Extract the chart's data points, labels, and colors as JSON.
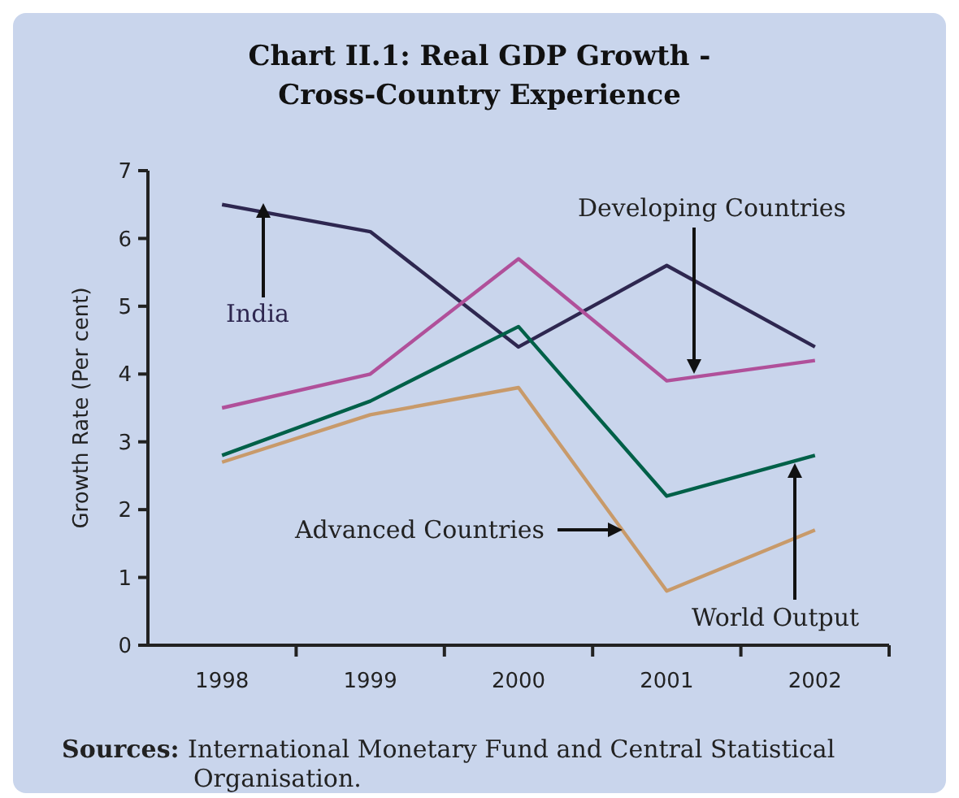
{
  "chart_data": {
    "type": "line",
    "title": "Chart II.1: Real GDP Growth -\nCross-Country Experience",
    "ylabel": "Growth Rate (Per cent)",
    "categories": [
      "1998",
      "1999",
      "2000",
      "2001",
      "2002"
    ],
    "series": [
      {
        "name": "India",
        "color": "#2e2750",
        "values": [
          6.5,
          6.1,
          4.4,
          5.6,
          4.4
        ]
      },
      {
        "name": "Developing Countries",
        "color": "#b0509a",
        "values": [
          3.5,
          4.0,
          5.7,
          3.9,
          4.2
        ]
      },
      {
        "name": "World Output",
        "color": "#006048",
        "values": [
          2.8,
          3.6,
          4.7,
          2.2,
          2.8
        ]
      },
      {
        "name": "Advanced Countries",
        "color": "#c89a6a",
        "values": [
          2.7,
          3.4,
          3.8,
          0.8,
          1.7
        ]
      }
    ],
    "ylim": [
      0,
      7
    ],
    "yticks": [
      0,
      1,
      2,
      3,
      4,
      5,
      6,
      7
    ],
    "grid": false,
    "legend": false,
    "marker": "none",
    "line_style": "solid",
    "annotations": [
      "Sources: International Monetary Fund and Central Statistical Organisation."
    ]
  }
}
